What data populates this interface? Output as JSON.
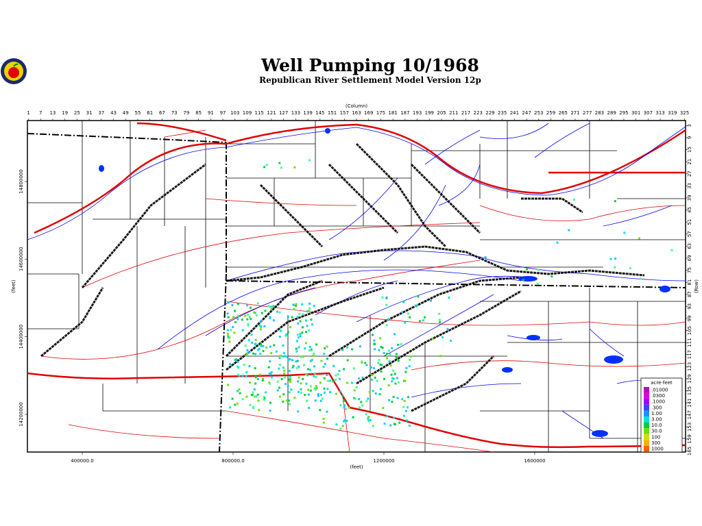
{
  "header": {
    "title": "Well Pumping 10/1968",
    "subtitle": "Republican River Settlement Model Version 12p"
  },
  "map": {
    "column_axis_label": "(Column)",
    "row_axis_label": "(Row)",
    "y_axis_label": "(feet)",
    "x_axis_label": "(feet)",
    "columns": [
      1,
      7,
      13,
      19,
      25,
      31,
      37,
      43,
      49,
      55,
      61,
      67,
      73,
      79,
      85,
      91,
      97,
      103,
      109,
      115,
      121,
      127,
      133,
      139,
      145,
      151,
      157,
      163,
      169,
      175,
      181,
      187,
      193,
      199,
      205,
      211,
      217,
      223,
      229,
      235,
      241,
      247,
      253,
      259,
      265,
      271,
      277,
      283,
      289,
      295,
      301,
      307,
      313,
      319,
      325
    ],
    "rows": [
      3,
      9,
      15,
      21,
      27,
      33,
      39,
      45,
      51,
      57,
      63,
      69,
      75,
      81,
      87,
      93,
      99,
      105,
      111,
      117,
      123,
      129,
      135,
      141,
      147,
      153,
      159,
      165
    ],
    "y_feet_ticks": [
      14800000,
      14600000,
      14400000,
      14200000
    ],
    "x_feet_ticks": [
      "400000.0",
      "800000.0",
      1200000,
      1600000
    ]
  },
  "legend": {
    "title": "acre-feet",
    "entries": [
      {
        "label": ".01000",
        "color": "#c000c0"
      },
      {
        "label": ".0300",
        "color": "#e000e0"
      },
      {
        "label": ".1000",
        "color": "#a000ff"
      },
      {
        "label": ".300",
        "color": "#4040ff"
      },
      {
        "label": "1.00",
        "color": "#2090ff"
      },
      {
        "label": "3.00",
        "color": "#00e0e0"
      },
      {
        "label": "10.0",
        "color": "#00d040"
      },
      {
        "label": "30.0",
        "color": "#70e000"
      },
      {
        "label": "100",
        "color": "#d0e000"
      },
      {
        "label": "300",
        "color": "#ffb000"
      },
      {
        "label": "1000",
        "color": "#ff6000"
      }
    ]
  }
}
